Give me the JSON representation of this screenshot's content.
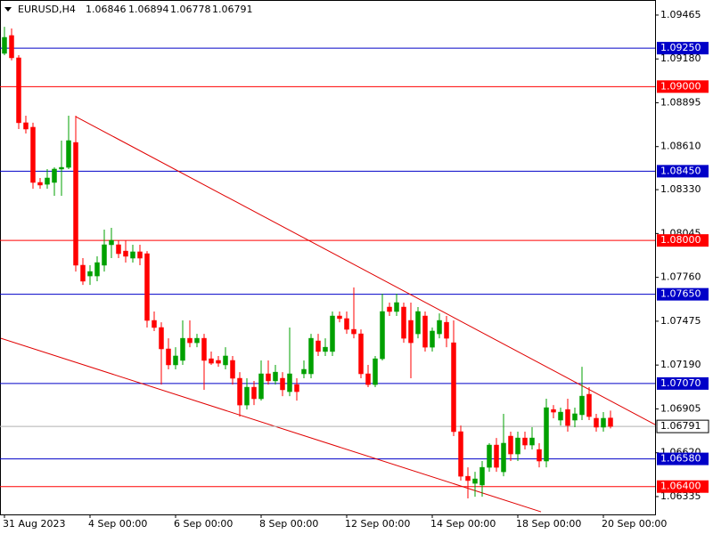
{
  "chart_data": {
    "type": "candlestick",
    "symbol": "EURUSD,H4",
    "categories": [
      "31 Aug 2023",
      null,
      null,
      null,
      null,
      null,
      null,
      null,
      null,
      null,
      null,
      null,
      "4 Sep 00:00",
      null,
      null,
      null,
      null,
      null,
      null,
      null,
      null,
      null,
      null,
      null,
      "6 Sep 00:00",
      null,
      null,
      null,
      null,
      null,
      null,
      null,
      null,
      null,
      null,
      null,
      "8 Sep 00:00",
      null,
      null,
      null,
      null,
      null,
      null,
      null,
      null,
      null,
      null,
      null,
      "12 Sep 00:00",
      null,
      null,
      null,
      null,
      null,
      null,
      null,
      null,
      null,
      null,
      null,
      "14 Sep 00:00",
      null,
      null,
      null,
      null,
      null,
      null,
      null,
      null,
      null,
      null,
      null,
      "18 Sep 00:00",
      null,
      null,
      null,
      null,
      null,
      null,
      null,
      null,
      null,
      null,
      null,
      "20 Sep 00:00",
      null
    ],
    "open": [
      1.09216,
      1.09332,
      1.09187,
      1.08765,
      1.08736,
      1.08377,
      1.08365,
      1.08377,
      1.08464,
      1.08475,
      1.08637,
      1.07839,
      1.07769,
      1.07769,
      1.07839,
      1.07972,
      1.07972,
      1.07931,
      1.07885,
      1.07926,
      1.07914,
      1.0748,
      1.07434,
      1.07295,
      1.07191,
      1.0722,
      1.07364,
      1.07335,
      1.07364,
      1.07231,
      1.0722,
      1.07191,
      1.0722,
      1.07104,
      1.0693,
      1.07046,
      1.06971,
      1.07133,
      1.07087,
      1.07104,
      1.07017,
      1.07063,
      1.07133,
      1.07133,
      1.07347,
      1.07278,
      1.07278,
      1.07509,
      1.07492,
      1.07422,
      1.07393,
      1.07133,
      1.07063,
      1.07231,
      1.07567,
      1.07538,
      1.07567,
      1.0748,
      1.07393,
      1.07509,
      1.07306,
      1.07393,
      1.07468,
      1.07335,
      1.06757,
      1.06467,
      1.06421,
      1.0641,
      1.06525,
      1.0667,
      1.06496,
      1.06728,
      1.06612,
      1.06716,
      1.0667,
      1.06641,
      1.06566,
      1.06901,
      1.06832,
      1.06901,
      1.06832,
      1.06867,
      1.07,
      1.06844,
      1.06786,
      1.06846
    ],
    "high": [
      1.09389,
      1.09378,
      1.09204,
      1.08811,
      1.08765,
      1.08406,
      1.08464,
      1.08475,
      1.08649,
      1.08811,
      1.08811,
      1.07885,
      1.07839,
      1.07897,
      1.0807,
      1.08082,
      1.08001,
      1.08001,
      1.07972,
      1.07972,
      1.07931,
      1.07538,
      1.07468,
      1.07364,
      1.07306,
      1.0748,
      1.0748,
      1.07393,
      1.07393,
      1.07278,
      1.07249,
      1.07306,
      1.07249,
      1.07144,
      1.07104,
      1.07087,
      1.0722,
      1.0722,
      1.07191,
      1.07144,
      1.07434,
      1.07104,
      1.0722,
      1.07393,
      1.07393,
      1.07364,
      1.07538,
      1.07538,
      1.07538,
      1.07694,
      1.07422,
      1.07191,
      1.07249,
      1.07654,
      1.07596,
      1.07654,
      1.07596,
      1.07596,
      1.07567,
      1.07538,
      1.07434,
      1.07526,
      1.07509,
      1.0748,
      1.06797,
      1.06525,
      1.06496,
      1.06566,
      1.06682,
      1.06716,
      1.06873,
      1.06757,
      1.06757,
      1.06757,
      1.06786,
      1.06682,
      1.06971,
      1.0693,
      1.06913,
      1.06971,
      1.06913,
      1.07179,
      1.07046,
      1.06873,
      1.06884,
      1.06894
    ],
    "low": [
      1.09204,
      1.0917,
      1.08724,
      1.08695,
      1.08336,
      1.08336,
      1.08336,
      1.0829,
      1.0829,
      1.08464,
      1.07798,
      1.07711,
      1.07711,
      1.07735,
      1.07798,
      1.07885,
      1.07885,
      1.07856,
      1.07856,
      1.07839,
      1.07434,
      1.07411,
      1.07063,
      1.07162,
      1.07162,
      1.07191,
      1.07306,
      1.07306,
      1.07029,
      1.07191,
      1.07179,
      1.07162,
      1.07063,
      1.06855,
      1.06901,
      1.0693,
      1.06959,
      1.07063,
      1.07063,
      1.06988,
      1.06988,
      1.06959,
      1.07104,
      1.07104,
      1.07249,
      1.07249,
      1.07249,
      1.07468,
      1.07393,
      1.07364,
      1.07104,
      1.07046,
      1.07046,
      1.0722,
      1.07509,
      1.07509,
      1.07335,
      1.07104,
      1.07364,
      1.07278,
      1.07278,
      1.07364,
      1.07306,
      1.06728,
      1.06439,
      1.06323,
      1.06334,
      1.06334,
      1.06496,
      1.06496,
      1.06467,
      1.06566,
      1.06566,
      1.06641,
      1.06641,
      1.06525,
      1.06525,
      1.06844,
      1.06797,
      1.06757,
      1.06786,
      1.06832,
      1.06832,
      1.06757,
      1.06757,
      1.06778
    ],
    "close": [
      1.0932,
      1.09187,
      1.08765,
      1.08724,
      1.08377,
      1.0836,
      1.08406,
      1.08464,
      1.08475,
      1.08649,
      1.07839,
      1.07735,
      1.07798,
      1.07856,
      1.07972,
      1.08001,
      1.07914,
      1.07897,
      1.07926,
      1.07885,
      1.0748,
      1.07434,
      1.07295,
      1.07191,
      1.07249,
      1.07364,
      1.07335,
      1.07364,
      1.0722,
      1.07202,
      1.07202,
      1.07249,
      1.07104,
      1.0693,
      1.07046,
      1.06971,
      1.07133,
      1.07087,
      1.07144,
      1.07029,
      1.07133,
      1.07017,
      1.07162,
      1.07364,
      1.07278,
      1.07306,
      1.07509,
      1.07492,
      1.07422,
      1.07393,
      1.07133,
      1.07063,
      1.07231,
      1.07538,
      1.07538,
      1.07596,
      1.07364,
      1.07335,
      1.07538,
      1.07306,
      1.07411,
      1.0748,
      1.07364,
      1.06757,
      1.06467,
      1.06439,
      1.0645,
      1.06525,
      1.0667,
      1.06525,
      1.06682,
      1.06612,
      1.06716,
      1.0667,
      1.06716,
      1.06566,
      1.06913,
      1.06884,
      1.06884,
      1.06797,
      1.06873,
      1.06988,
      1.06855,
      1.06786,
      1.06844,
      1.06791
    ],
    "ylim": [
      1.06219,
      1.09563
    ],
    "yticks": [
      1.09465,
      {
        "value": 1.0918,
        "label": "1.09180"
      },
      1.08895,
      {
        "value": 1.0861,
        "label": "1.08610"
      },
      {
        "value": 1.0833,
        "label": "1.08330"
      },
      1.08045,
      {
        "value": 1.0776,
        "label": "1.07760"
      },
      1.07475,
      {
        "value": 1.0719,
        "label": "1.07190"
      },
      1.06905,
      {
        "value": 1.0662,
        "label": "1.06620"
      },
      1.06335
    ],
    "levels": [
      {
        "value": 1.0925,
        "label": "1.09250",
        "color": "#0000c8"
      },
      {
        "value": 1.09,
        "label": "1.09000",
        "color": "#ff0000"
      },
      {
        "value": 1.0845,
        "label": "1.08450",
        "color": "#0000c8"
      },
      {
        "value": 1.08,
        "label": "1.08000",
        "color": "#ff0000"
      },
      {
        "value": 1.0765,
        "label": "1.07650",
        "color": "#0000c8"
      },
      {
        "value": 1.0707,
        "label": "1.07070",
        "color": "#0000c8"
      },
      {
        "value": 1.0658,
        "label": "1.06580",
        "color": "#0000c8"
      },
      {
        "value": 1.064,
        "label": "1.06400",
        "color": "#ff0000"
      }
    ],
    "trendlines": [
      {
        "x": [
          10,
          91.5
        ],
        "y": [
          1.08805,
          1.06797
        ],
        "color": "#e00000"
      },
      {
        "x": [
          -0.5,
          75.25
        ],
        "y": [
          1.07364,
          1.06236
        ],
        "color": "#e00000"
      }
    ],
    "up_color": "#00a000",
    "down_color": "#ff0000",
    "price_line_color": "#b0b0b0"
  }
}
